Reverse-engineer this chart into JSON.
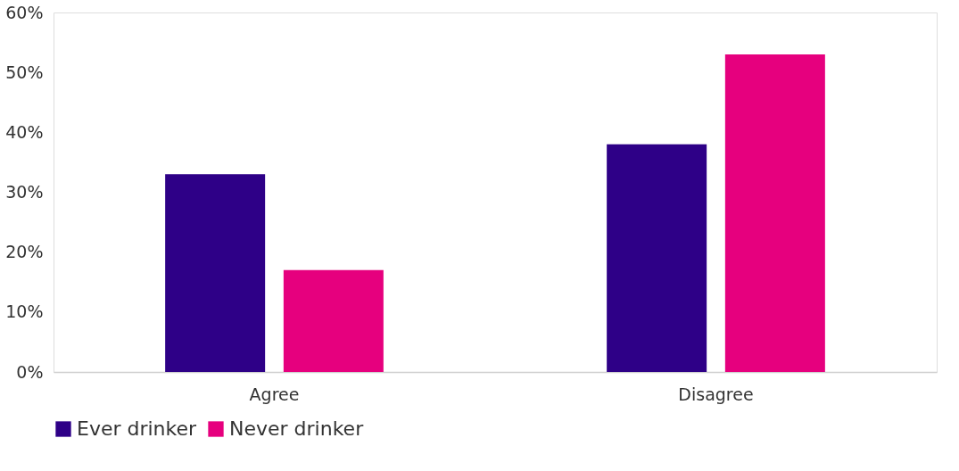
{
  "chart_data": {
    "type": "bar",
    "categories": [
      "Agree",
      "Disagree"
    ],
    "series": [
      {
        "name": "Ever drinker",
        "color": "#2e0087",
        "values": [
          33,
          38
        ]
      },
      {
        "name": "Never drinker",
        "color": "#e6007e",
        "values": [
          17,
          53
        ]
      }
    ],
    "ylim": [
      0,
      60
    ],
    "yticks": [
      {
        "value": 0,
        "label": "0%"
      },
      {
        "value": 10,
        "label": "10%"
      },
      {
        "value": 20,
        "label": "20%"
      },
      {
        "value": 30,
        "label": "30%"
      },
      {
        "value": 40,
        "label": "40%"
      },
      {
        "value": 50,
        "label": "50%"
      },
      {
        "value": 60,
        "label": "60%"
      }
    ],
    "grid": false,
    "legend": "bottom"
  }
}
